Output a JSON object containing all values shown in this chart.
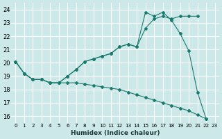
{
  "xlabel": "Humidex (Indice chaleur)",
  "bg_color": "#cce8e8",
  "grid_color": "#b8d8d8",
  "line_color": "#1a7a6e",
  "xlim": [
    -0.5,
    23.5
  ],
  "ylim": [
    15.5,
    24.5
  ],
  "xticks": [
    0,
    1,
    2,
    3,
    4,
    5,
    6,
    7,
    8,
    9,
    10,
    11,
    12,
    13,
    14,
    15,
    16,
    17,
    18,
    19,
    20,
    21,
    22,
    23
  ],
  "yticks": [
    16,
    17,
    18,
    19,
    20,
    21,
    22,
    23,
    24
  ],
  "s1_x": [
    0,
    1,
    2,
    3,
    4,
    5,
    6,
    7,
    8,
    9,
    10,
    11,
    12,
    13,
    14,
    15,
    16,
    17,
    18,
    19,
    20,
    21,
    22
  ],
  "s1_y": [
    20.1,
    19.2,
    18.75,
    18.75,
    18.5,
    18.5,
    18.5,
    18.5,
    18.4,
    18.3,
    18.2,
    18.1,
    18.0,
    17.8,
    17.6,
    17.4,
    17.2,
    17.0,
    16.8,
    16.6,
    16.4,
    16.1,
    15.8
  ],
  "s2_x": [
    0,
    1,
    2,
    3,
    4,
    5,
    6,
    7,
    8,
    9,
    10,
    11,
    12,
    13,
    14,
    15,
    16,
    17,
    18,
    19,
    20,
    21
  ],
  "s2_y": [
    20.1,
    19.2,
    18.75,
    18.75,
    18.5,
    18.5,
    19.0,
    19.5,
    20.1,
    20.3,
    20.5,
    20.7,
    21.2,
    21.4,
    21.2,
    22.6,
    23.3,
    23.5,
    23.3,
    23.5,
    23.5,
    23.5
  ],
  "s3_x": [
    0,
    1,
    2,
    3,
    4,
    5,
    6,
    7,
    8,
    9,
    10,
    11,
    12,
    13,
    14,
    15,
    16,
    17,
    18,
    19,
    20,
    21,
    22
  ],
  "s3_y": [
    20.1,
    19.2,
    18.75,
    18.75,
    18.5,
    18.5,
    19.0,
    19.5,
    20.1,
    20.3,
    20.5,
    20.7,
    21.2,
    21.4,
    21.2,
    23.8,
    23.5,
    23.8,
    23.2,
    22.2,
    20.9,
    17.8,
    15.8
  ]
}
